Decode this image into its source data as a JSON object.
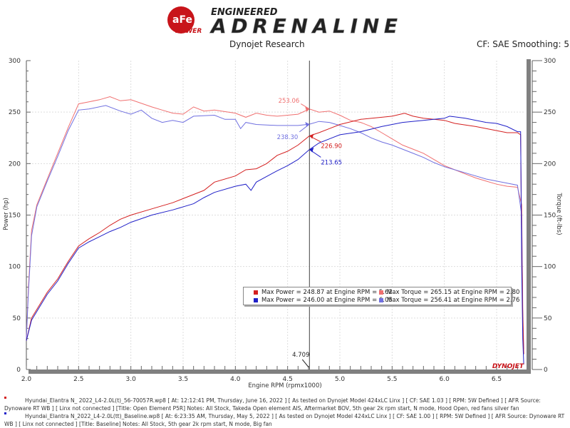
{
  "header": {
    "logo_brand": "aFe POWER",
    "logo_tagline": "ENGINEERED",
    "logo_title": "ADRENALINE",
    "center_title": "Dynojet Research",
    "right_info": "CF: SAE Smoothing: 5"
  },
  "colors": {
    "power_new": "#d42020",
    "power_base": "#2020c8",
    "torque_new": "#f07070",
    "torque_base": "#7070e0"
  },
  "chart_data": {
    "type": "line",
    "xlabel": "Engine RPM (rpmx1000)",
    "ylabel": "Power (hp)",
    "y2label": "Torque (ft-lbs)",
    "xlim": [
      2.0,
      6.77
    ],
    "ylim": [
      0,
      300
    ],
    "y2lim": [
      0,
      300
    ],
    "xticks": [
      "2.0",
      "2.5",
      "3.0",
      "3.5",
      "4.0",
      "4.5",
      "5.0",
      "5.5",
      "6.0",
      "6.5"
    ],
    "yticks": [
      "0",
      "50",
      "100",
      "150",
      "200",
      "250",
      "300"
    ],
    "y2ticks": [
      "0",
      "50",
      "100",
      "150",
      "200",
      "250",
      "300"
    ],
    "grid": true,
    "cursor": {
      "x": 4.709,
      "label": "4.709"
    },
    "series": [
      {
        "key": "torque_new",
        "axis": "right",
        "points": [
          [
            2.0,
            30
          ],
          [
            2.02,
            80
          ],
          [
            2.05,
            135
          ],
          [
            2.1,
            160
          ],
          [
            2.2,
            185
          ],
          [
            2.3,
            210
          ],
          [
            2.4,
            235
          ],
          [
            2.5,
            258
          ],
          [
            2.6,
            260
          ],
          [
            2.7,
            262
          ],
          [
            2.8,
            265
          ],
          [
            2.9,
            261
          ],
          [
            3.0,
            262
          ],
          [
            3.2,
            255
          ],
          [
            3.3,
            252
          ],
          [
            3.4,
            249
          ],
          [
            3.5,
            248
          ],
          [
            3.6,
            255
          ],
          [
            3.7,
            251
          ],
          [
            3.8,
            252
          ],
          [
            4.0,
            249
          ],
          [
            4.1,
            245
          ],
          [
            4.2,
            249
          ],
          [
            4.3,
            247
          ],
          [
            4.4,
            246
          ],
          [
            4.5,
            247
          ],
          [
            4.6,
            248
          ],
          [
            4.709,
            253.06
          ],
          [
            4.8,
            250
          ],
          [
            4.9,
            251
          ],
          [
            5.0,
            247
          ],
          [
            5.1,
            242
          ],
          [
            5.2,
            240
          ],
          [
            5.3,
            236
          ],
          [
            5.4,
            230
          ],
          [
            5.5,
            224
          ],
          [
            5.6,
            218
          ],
          [
            5.7,
            214
          ],
          [
            5.8,
            210
          ],
          [
            5.9,
            204
          ],
          [
            6.0,
            198
          ],
          [
            6.1,
            194
          ],
          [
            6.2,
            190
          ],
          [
            6.3,
            186
          ],
          [
            6.4,
            183
          ],
          [
            6.5,
            180
          ],
          [
            6.6,
            178
          ],
          [
            6.7,
            177
          ],
          [
            6.74,
            160
          ],
          [
            6.75,
            60
          ],
          [
            6.76,
            20
          ]
        ]
      },
      {
        "key": "torque_base",
        "axis": "right",
        "points": [
          [
            2.0,
            30
          ],
          [
            2.02,
            75
          ],
          [
            2.05,
            130
          ],
          [
            2.1,
            158
          ],
          [
            2.2,
            183
          ],
          [
            2.3,
            207
          ],
          [
            2.4,
            232
          ],
          [
            2.5,
            252
          ],
          [
            2.6,
            253
          ],
          [
            2.76,
            256.41
          ],
          [
            2.9,
            251
          ],
          [
            3.0,
            248
          ],
          [
            3.1,
            252
          ],
          [
            3.2,
            244
          ],
          [
            3.3,
            240
          ],
          [
            3.4,
            242
          ],
          [
            3.5,
            240
          ],
          [
            3.6,
            246
          ],
          [
            3.8,
            247
          ],
          [
            3.9,
            243
          ],
          [
            4.0,
            243
          ],
          [
            4.05,
            234
          ],
          [
            4.1,
            240
          ],
          [
            4.2,
            238
          ],
          [
            4.4,
            237
          ],
          [
            4.6,
            237
          ],
          [
            4.709,
            238.3
          ],
          [
            4.8,
            241
          ],
          [
            4.9,
            240
          ],
          [
            5.0,
            237
          ],
          [
            5.1,
            234
          ],
          [
            5.2,
            230
          ],
          [
            5.3,
            225
          ],
          [
            5.4,
            221
          ],
          [
            5.5,
            218
          ],
          [
            5.6,
            214
          ],
          [
            5.7,
            210
          ],
          [
            5.8,
            206
          ],
          [
            5.9,
            201
          ],
          [
            6.0,
            197
          ],
          [
            6.2,
            191
          ],
          [
            6.4,
            185
          ],
          [
            6.5,
            183
          ],
          [
            6.6,
            181
          ],
          [
            6.7,
            179
          ],
          [
            6.74,
            150
          ],
          [
            6.75,
            50
          ],
          [
            6.76,
            15
          ]
        ]
      },
      {
        "key": "power_new",
        "axis": "left",
        "points": [
          [
            2.0,
            28
          ],
          [
            2.05,
            50
          ],
          [
            2.2,
            75
          ],
          [
            2.3,
            88
          ],
          [
            2.4,
            105
          ],
          [
            2.5,
            120
          ],
          [
            2.6,
            127
          ],
          [
            2.7,
            133
          ],
          [
            2.8,
            140
          ],
          [
            2.9,
            146
          ],
          [
            3.0,
            150
          ],
          [
            3.2,
            156
          ],
          [
            3.4,
            162
          ],
          [
            3.6,
            170
          ],
          [
            3.7,
            174
          ],
          [
            3.8,
            182
          ],
          [
            4.0,
            188
          ],
          [
            4.1,
            194
          ],
          [
            4.2,
            195
          ],
          [
            4.3,
            200
          ],
          [
            4.4,
            208
          ],
          [
            4.5,
            212
          ],
          [
            4.6,
            218
          ],
          [
            4.709,
            226.9
          ],
          [
            4.8,
            230
          ],
          [
            4.9,
            234
          ],
          [
            5.0,
            238
          ],
          [
            5.2,
            243
          ],
          [
            5.4,
            245
          ],
          [
            5.5,
            246
          ],
          [
            5.62,
            248.87
          ],
          [
            5.7,
            246
          ],
          [
            5.8,
            244
          ],
          [
            6.0,
            242
          ],
          [
            6.1,
            239
          ],
          [
            6.3,
            236
          ],
          [
            6.5,
            232
          ],
          [
            6.6,
            230
          ],
          [
            6.7,
            230
          ],
          [
            6.73,
            228
          ],
          [
            6.74,
            120
          ],
          [
            6.75,
            50
          ],
          [
            6.76,
            15
          ]
        ]
      },
      {
        "key": "power_base",
        "axis": "left",
        "points": [
          [
            2.0,
            28
          ],
          [
            2.05,
            48
          ],
          [
            2.2,
            73
          ],
          [
            2.3,
            86
          ],
          [
            2.4,
            103
          ],
          [
            2.5,
            118
          ],
          [
            2.6,
            124
          ],
          [
            2.7,
            129
          ],
          [
            2.8,
            134
          ],
          [
            2.9,
            138
          ],
          [
            3.0,
            143
          ],
          [
            3.2,
            150
          ],
          [
            3.4,
            155
          ],
          [
            3.6,
            161
          ],
          [
            3.7,
            167
          ],
          [
            3.8,
            172
          ],
          [
            4.0,
            178
          ],
          [
            4.1,
            180
          ],
          [
            4.15,
            174
          ],
          [
            4.2,
            182
          ],
          [
            4.4,
            193
          ],
          [
            4.5,
            198
          ],
          [
            4.6,
            204
          ],
          [
            4.709,
            213.65
          ],
          [
            4.8,
            220
          ],
          [
            4.9,
            224
          ],
          [
            5.0,
            228
          ],
          [
            5.2,
            231
          ],
          [
            5.4,
            236
          ],
          [
            5.6,
            240
          ],
          [
            5.8,
            242
          ],
          [
            6.0,
            244
          ],
          [
            6.05,
            246.0
          ],
          [
            6.2,
            244
          ],
          [
            6.4,
            240
          ],
          [
            6.5,
            239
          ],
          [
            6.6,
            236
          ],
          [
            6.7,
            231
          ],
          [
            6.73,
            231
          ],
          [
            6.74,
            100
          ],
          [
            6.75,
            30
          ],
          [
            6.76,
            5
          ]
        ]
      }
    ],
    "annotations": [
      {
        "text": "253.06",
        "series": "torque_new",
        "x": 4.709,
        "y": 253.06
      },
      {
        "text": "238.30",
        "series": "torque_base",
        "x": 4.709,
        "y": 238.3
      },
      {
        "text": "226.90",
        "series": "power_new",
        "x": 4.709,
        "y": 226.9
      },
      {
        "text": "213.65",
        "series": "power_base",
        "x": 4.709,
        "y": 213.65
      }
    ],
    "legend": {
      "placement": "bottom-center",
      "entries": [
        {
          "key": "power_new",
          "text": "Max Power = 248.87 at Engine RPM = 5.62"
        },
        {
          "key": "torque_new",
          "text": "Max Torque = 265.15 at Engine RPM = 2.80"
        },
        {
          "key": "power_base",
          "text": "Max Power = 246.00 at Engine RPM = 6.05"
        },
        {
          "key": "torque_base",
          "text": "Max Torque = 256.41 at Engine RPM = 2.76"
        }
      ]
    },
    "watermark": "DYNOJET"
  },
  "notes": [
    {
      "key": "power_new",
      "text": "Hyundai_Elantra N_ 2022_L4-2.0L(t)_56-70057R.wp8 [ At: 12:12:41 PM, Thursday, June 16, 2022 ] [ As tested on Dynojet Model 424xLC Linx ] [ CF: SAE 1.03 ] [ RPM: 5W Defined ] [ AFR Source: Dynoware RT WB ] [ Linx not connected ] [Title: Open Element P5R]  Notes: All Stock, Takeda Open element AIS, Aftermarket BOV, 5th gear 2k rpm start, N mode, Hood Open, red fans silver fan"
    },
    {
      "key": "power_base",
      "text": "Hyundai_Elantra N_2022_L4-2.0L(tt)_Baseline.wp8 [ At: 6:23:35 AM, Thursday, May 5, 2022 ] [ As tested on Dynojet Model 424xLC Linx ] [ CF: SAE 1.00 ] [ RPM: 5W Defined ] [ AFR Source: Dynoware RT WB ] [ Linx not connected ] [Title: Baseline]  Notes: All Stock, 5th gear 2k rpm start, N mode, Big fan"
    }
  ]
}
